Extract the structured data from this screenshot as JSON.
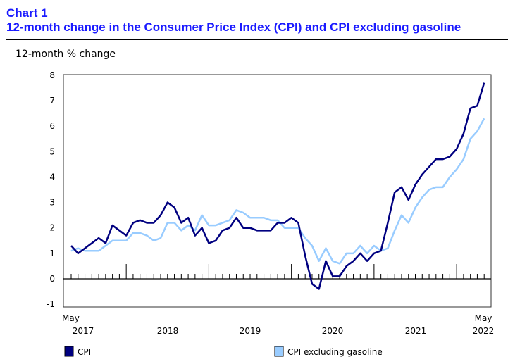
{
  "header": {
    "chart_number": "Chart 1",
    "title": "12-month change in the Consumer Price Index (CPI) and CPI excluding gasoline"
  },
  "chart_data": {
    "type": "line",
    "title": "12-month change in the Consumer Price Index (CPI) and CPI excluding gasoline",
    "ylabel": "12-month % change",
    "ylim": [
      -1,
      8
    ],
    "yticks": [
      "-1",
      "0",
      "1",
      "2",
      "3",
      "4",
      "5",
      "6",
      "7",
      "8"
    ],
    "x_start": "May 2017",
    "x_end": "May 2022",
    "frequency": "monthly",
    "xtick_labels": {
      "start_month": "May",
      "start_year": "2017",
      "years": [
        "2018",
        "2019",
        "2020",
        "2021"
      ],
      "end_month": "May",
      "end_year": "2022"
    },
    "grid": false,
    "legend_position": "bottom",
    "series": [
      {
        "name": "CPI",
        "color": "#000080",
        "values": [
          1.3,
          1.0,
          1.2,
          1.4,
          1.6,
          1.4,
          2.1,
          1.9,
          1.7,
          2.2,
          2.3,
          2.2,
          2.2,
          2.5,
          3.0,
          2.8,
          2.2,
          2.4,
          1.7,
          2.0,
          1.4,
          1.5,
          1.9,
          2.0,
          2.4,
          2.0,
          2.0,
          1.9,
          1.9,
          1.9,
          2.2,
          2.2,
          2.4,
          2.2,
          0.9,
          -0.2,
          -0.4,
          0.7,
          0.1,
          0.1,
          0.5,
          0.7,
          1.0,
          0.7,
          1.0,
          1.1,
          2.2,
          3.4,
          3.6,
          3.1,
          3.7,
          4.1,
          4.4,
          4.7,
          4.7,
          4.8,
          5.1,
          5.7,
          6.7,
          6.8,
          7.7
        ]
      },
      {
        "name": "CPI excluding gasoline",
        "color": "#99ccff",
        "values": [
          1.1,
          1.2,
          1.1,
          1.1,
          1.1,
          1.3,
          1.5,
          1.5,
          1.5,
          1.8,
          1.8,
          1.7,
          1.5,
          1.6,
          2.2,
          2.2,
          1.9,
          2.1,
          1.9,
          2.5,
          2.1,
          2.1,
          2.2,
          2.3,
          2.7,
          2.6,
          2.4,
          2.4,
          2.4,
          2.3,
          2.3,
          2.0,
          2.0,
          2.0,
          1.6,
          1.3,
          0.7,
          1.2,
          0.7,
          0.6,
          1.0,
          1.0,
          1.3,
          1.0,
          1.3,
          1.1,
          1.2,
          1.9,
          2.5,
          2.2,
          2.8,
          3.2,
          3.5,
          3.6,
          3.6,
          4.0,
          4.3,
          4.7,
          5.5,
          5.8,
          6.3
        ]
      }
    ]
  }
}
